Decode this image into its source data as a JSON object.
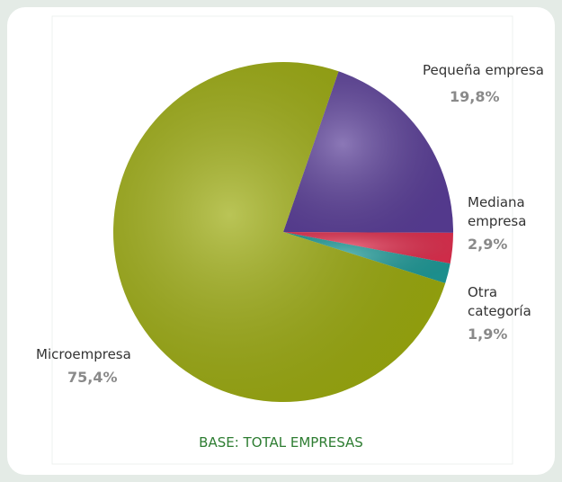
{
  "chart_data": {
    "type": "pie",
    "categories": [
      "Pequeña empresa",
      "Mediana empresa",
      "Otra categoría",
      "Microempresa"
    ],
    "values": [
      19.8,
      2.9,
      1.9,
      75.4
    ],
    "value_labels": [
      "19,8%",
      "2,9%",
      "1,9%",
      "75,4%"
    ],
    "colors": [
      "#5a3e98",
      "#e0304f",
      "#1e9a98",
      "#9cab0e"
    ],
    "note": "BASE: TOTAL EMPRESAS"
  }
}
